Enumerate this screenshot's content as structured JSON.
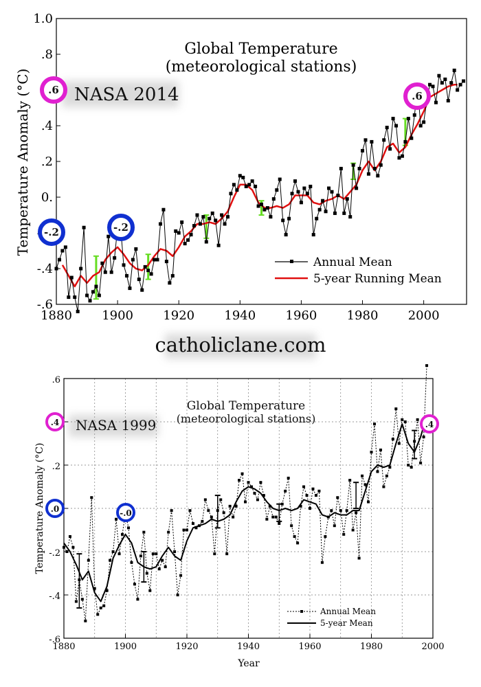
{
  "watermark": "catholiclane.com",
  "chart_data": [
    {
      "type": "line",
      "title": "Global Temperature",
      "subtitle": "(meteorological stations)",
      "stamp": "NASA 2014",
      "ylabel": "Temperature Anomaly (°C)",
      "xlabel": "",
      "xlim": [
        1880,
        2014
      ],
      "ylim": [
        -0.6,
        1.0
      ],
      "xticks": [
        1880,
        1900,
        1920,
        1940,
        1960,
        1980,
        2000
      ],
      "yticks": [
        {
          "v": -0.6,
          "label": "-.6"
        },
        {
          "v": -0.4,
          "label": "-.4"
        },
        {
          "v": -0.2,
          "label": "-.2"
        },
        {
          "v": 0.0,
          "label": "0."
        },
        {
          "v": 0.2,
          "label": ".2"
        },
        {
          "v": 0.4,
          "label": ".4"
        },
        {
          "v": 0.6,
          "label": ".6"
        },
        {
          "v": 0.8,
          "label": ".8"
        },
        {
          "v": 1.0,
          "label": "1.0"
        }
      ],
      "grid": false,
      "legend": {
        "position": "bottom-right",
        "annual": "Annual Mean",
        "running": "5-year Running Mean"
      },
      "colors": {
        "annual": "#000000",
        "running": "#e01010",
        "errorbar": "#66dd22"
      },
      "series": [
        {
          "name": "Annual Mean",
          "x": [
            1880,
            1881,
            1882,
            1883,
            1884,
            1885,
            1886,
            1887,
            1888,
            1889,
            1890,
            1891,
            1892,
            1893,
            1894,
            1895,
            1896,
            1897,
            1898,
            1899,
            1900,
            1901,
            1902,
            1903,
            1904,
            1905,
            1906,
            1907,
            1908,
            1909,
            1910,
            1911,
            1912,
            1913,
            1914,
            1915,
            1916,
            1917,
            1918,
            1919,
            1920,
            1921,
            1922,
            1923,
            1924,
            1925,
            1926,
            1927,
            1928,
            1929,
            1930,
            1931,
            1932,
            1933,
            1934,
            1935,
            1936,
            1937,
            1938,
            1939,
            1940,
            1941,
            1942,
            1943,
            1944,
            1945,
            1946,
            1947,
            1948,
            1949,
            1950,
            1951,
            1952,
            1953,
            1954,
            1955,
            1956,
            1957,
            1958,
            1959,
            1960,
            1961,
            1962,
            1963,
            1964,
            1965,
            1966,
            1967,
            1968,
            1969,
            1970,
            1971,
            1972,
            1973,
            1974,
            1975,
            1976,
            1977,
            1978,
            1979,
            1980,
            1981,
            1982,
            1983,
            1984,
            1985,
            1986,
            1987,
            1988,
            1989,
            1990,
            1991,
            1992,
            1993,
            1994,
            1995,
            1996,
            1997,
            1998,
            1999,
            2000,
            2001,
            2002,
            2003,
            2004,
            2005,
            2006,
            2007,
            2008,
            2009,
            2010,
            2011,
            2012,
            2013
          ],
          "y": [
            -0.4,
            -0.35,
            -0.3,
            -0.28,
            -0.56,
            -0.45,
            -0.56,
            -0.64,
            -0.4,
            -0.17,
            -0.55,
            -0.58,
            -0.53,
            -0.5,
            -0.55,
            -0.37,
            -0.42,
            -0.22,
            -0.42,
            -0.34,
            -0.17,
            -0.17,
            -0.38,
            -0.44,
            -0.51,
            -0.35,
            -0.29,
            -0.46,
            -0.52,
            -0.39,
            -0.41,
            -0.43,
            -0.35,
            -0.35,
            -0.15,
            -0.07,
            -0.36,
            -0.48,
            -0.44,
            -0.19,
            -0.2,
            -0.14,
            -0.26,
            -0.24,
            -0.21,
            -0.16,
            -0.1,
            -0.15,
            -0.11,
            -0.25,
            -0.12,
            -0.09,
            -0.13,
            -0.27,
            -0.1,
            -0.15,
            -0.11,
            0.02,
            0.07,
            0.04,
            0.12,
            0.11,
            0.06,
            0.07,
            0.09,
            0.06,
            -0.05,
            -0.04,
            -0.07,
            -0.06,
            -0.11,
            -0.01,
            0.04,
            0.1,
            -0.13,
            -0.21,
            -0.12,
            0.02,
            0.09,
            0.03,
            -0.03,
            0.05,
            0.02,
            0.06,
            -0.21,
            -0.12,
            -0.07,
            -0.02,
            -0.08,
            0.05,
            0.03,
            -0.09,
            0.01,
            0.16,
            -0.09,
            -0.01,
            -0.11,
            0.18,
            0.05,
            0.16,
            0.26,
            0.32,
            0.13,
            0.31,
            0.16,
            0.12,
            0.18,
            0.32,
            0.39,
            0.27,
            0.44,
            0.4,
            0.22,
            0.23,
            0.31,
            0.44,
            0.33,
            0.46,
            0.62,
            0.4,
            0.42,
            0.54,
            0.63,
            0.62,
            0.53,
            0.68,
            0.64,
            0.66,
            0.54,
            0.64,
            0.71,
            0.6,
            0.63,
            0.65
          ]
        },
        {
          "name": "5-year Running Mean",
          "x": [
            1882,
            1884,
            1886,
            1888,
            1890,
            1892,
            1894,
            1896,
            1898,
            1900,
            1902,
            1904,
            1906,
            1908,
            1910,
            1912,
            1914,
            1916,
            1918,
            1920,
            1922,
            1924,
            1926,
            1928,
            1930,
            1932,
            1934,
            1936,
            1938,
            1940,
            1942,
            1944,
            1946,
            1948,
            1950,
            1952,
            1954,
            1956,
            1958,
            1960,
            1962,
            1964,
            1966,
            1968,
            1970,
            1972,
            1974,
            1976,
            1978,
            1980,
            1982,
            1984,
            1986,
            1988,
            1990,
            1992,
            1994,
            1996,
            1998,
            2000,
            2002,
            2004,
            2006,
            2008,
            2010,
            2011
          ],
          "y": [
            -0.38,
            -0.44,
            -0.5,
            -0.44,
            -0.48,
            -0.44,
            -0.42,
            -0.35,
            -0.31,
            -0.28,
            -0.32,
            -0.37,
            -0.4,
            -0.41,
            -0.38,
            -0.33,
            -0.29,
            -0.3,
            -0.33,
            -0.28,
            -0.22,
            -0.19,
            -0.15,
            -0.15,
            -0.14,
            -0.15,
            -0.12,
            -0.08,
            0.0,
            0.07,
            0.07,
            0.04,
            -0.03,
            -0.06,
            -0.06,
            -0.05,
            -0.06,
            -0.04,
            0.01,
            0.01,
            0.01,
            -0.03,
            -0.04,
            -0.02,
            -0.01,
            0.01,
            -0.01,
            0.03,
            0.07,
            0.15,
            0.2,
            0.15,
            0.2,
            0.28,
            0.3,
            0.25,
            0.28,
            0.35,
            0.41,
            0.48,
            0.56,
            0.58,
            0.6,
            0.62,
            0.63,
            0.63
          ]
        }
      ],
      "errorbars": [
        {
          "x": 1893,
          "lo": -0.57,
          "hi": -0.33
        },
        {
          "x": 1910,
          "lo": -0.46,
          "hi": -0.32
        },
        {
          "x": 1929,
          "lo": -0.23,
          "hi": -0.1
        },
        {
          "x": 1947,
          "lo": -0.1,
          "hi": -0.02
        },
        {
          "x": 1977,
          "lo": 0.1,
          "hi": 0.19
        },
        {
          "x": 1994,
          "lo": 0.29,
          "hi": 0.44
        }
      ],
      "markers": [
        {
          "label": ".6",
          "color": "magenta",
          "x": 1879,
          "y": 0.6
        },
        {
          "label": "-.2",
          "color": "blue",
          "x": 1879,
          "y": -0.2
        },
        {
          "label": "-.2",
          "color": "blue",
          "x": 1900,
          "y": -0.18
        },
        {
          "label": ".6",
          "color": "magenta",
          "x": 1998,
          "y": 0.58
        }
      ]
    },
    {
      "type": "line",
      "title": "Global Temperature",
      "subtitle": "(meteorological stations)",
      "stamp": "NASA 1999",
      "ylabel": "Temperature Anomaly (°C)",
      "xlabel": "Year",
      "xlim": [
        1880,
        2000
      ],
      "ylim": [
        -0.6,
        0.6
      ],
      "xticks": [
        1880,
        1900,
        1920,
        1940,
        1960,
        1980,
        2000
      ],
      "yticks": [
        {
          "v": -0.6,
          "label": "-.6"
        },
        {
          "v": -0.4,
          "label": "-.4"
        },
        {
          "v": -0.2,
          "label": "-.2"
        },
        {
          "v": 0.0,
          "label": ".0"
        },
        {
          "v": 0.2,
          "label": ".2"
        },
        {
          "v": 0.4,
          "label": ".4"
        },
        {
          "v": 0.6,
          "label": ".6"
        }
      ],
      "grid": true,
      "legend": {
        "position": "bottom-right",
        "annual": "Annual Mean",
        "running": "5-year Mean"
      },
      "colors": {
        "annual": "#000000",
        "running": "#000000",
        "errorbar": "#000000"
      },
      "series": [
        {
          "name": "Annual Mean",
          "x": [
            1880,
            1881,
            1882,
            1883,
            1884,
            1885,
            1886,
            1887,
            1888,
            1889,
            1890,
            1891,
            1892,
            1893,
            1894,
            1895,
            1896,
            1897,
            1898,
            1899,
            1900,
            1901,
            1902,
            1903,
            1904,
            1905,
            1906,
            1907,
            1908,
            1909,
            1910,
            1911,
            1912,
            1913,
            1914,
            1915,
            1916,
            1917,
            1918,
            1919,
            1920,
            1921,
            1922,
            1923,
            1924,
            1925,
            1926,
            1927,
            1928,
            1929,
            1930,
            1931,
            1932,
            1933,
            1934,
            1935,
            1936,
            1937,
            1938,
            1939,
            1940,
            1941,
            1942,
            1943,
            1944,
            1945,
            1946,
            1947,
            1948,
            1949,
            1950,
            1951,
            1952,
            1953,
            1954,
            1955,
            1956,
            1957,
            1958,
            1959,
            1960,
            1961,
            1962,
            1963,
            1964,
            1965,
            1966,
            1967,
            1968,
            1969,
            1970,
            1971,
            1972,
            1973,
            1974,
            1975,
            1976,
            1977,
            1978,
            1979,
            1980,
            1981,
            1982,
            1983,
            1984,
            1985,
            1986,
            1987,
            1988,
            1989,
            1990,
            1991,
            1992,
            1993,
            1994,
            1995,
            1996,
            1997,
            1998
          ],
          "y": [
            -0.18,
            -0.2,
            -0.13,
            -0.18,
            -0.43,
            -0.33,
            -0.42,
            -0.52,
            -0.24,
            0.05,
            -0.37,
            -0.49,
            -0.46,
            -0.45,
            -0.38,
            -0.24,
            -0.2,
            -0.05,
            -0.21,
            -0.12,
            -0.02,
            -0.09,
            -0.25,
            -0.35,
            -0.42,
            -0.22,
            -0.11,
            -0.3,
            -0.38,
            -0.21,
            -0.21,
            -0.28,
            -0.24,
            -0.27,
            -0.11,
            -0.01,
            -0.2,
            -0.4,
            -0.31,
            -0.1,
            -0.1,
            -0.01,
            -0.07,
            -0.09,
            -0.08,
            -0.06,
            0.04,
            -0.01,
            -0.04,
            -0.21,
            -0.01,
            0.04,
            -0.02,
            -0.21,
            0.01,
            -0.04,
            0.01,
            0.13,
            0.16,
            0.03,
            0.12,
            0.1,
            0.07,
            0.04,
            0.12,
            0.06,
            -0.05,
            0.01,
            -0.04,
            -0.04,
            -0.07,
            0.02,
            0.08,
            0.14,
            -0.08,
            -0.13,
            -0.16,
            0.01,
            0.1,
            0.06,
            0.0,
            0.09,
            0.06,
            0.08,
            -0.25,
            -0.13,
            -0.04,
            -0.01,
            -0.08,
            0.05,
            -0.01,
            -0.12,
            -0.01,
            0.13,
            -0.1,
            -0.02,
            -0.23,
            0.15,
            0.11,
            0.03,
            0.26,
            0.39,
            0.17,
            0.27,
            0.1,
            0.15,
            0.19,
            0.32,
            0.46,
            0.3,
            0.41,
            0.4,
            0.2,
            0.19,
            0.31,
            0.41,
            0.21,
            0.33,
            0.66
          ]
        },
        {
          "name": "5-year Mean",
          "x": [
            1880,
            1882,
            1884,
            1886,
            1888,
            1890,
            1892,
            1894,
            1896,
            1898,
            1900,
            1902,
            1904,
            1906,
            1908,
            1910,
            1912,
            1914,
            1916,
            1918,
            1920,
            1922,
            1924,
            1926,
            1928,
            1930,
            1932,
            1934,
            1936,
            1938,
            1940,
            1942,
            1944,
            1946,
            1948,
            1950,
            1952,
            1954,
            1956,
            1958,
            1960,
            1962,
            1964,
            1966,
            1968,
            1970,
            1972,
            1974,
            1976,
            1978,
            1980,
            1982,
            1984,
            1986,
            1988,
            1990,
            1992,
            1994,
            1996,
            1997
          ],
          "y": [
            -0.16,
            -0.2,
            -0.26,
            -0.33,
            -0.29,
            -0.39,
            -0.43,
            -0.36,
            -0.23,
            -0.17,
            -0.12,
            -0.16,
            -0.25,
            -0.27,
            -0.28,
            -0.27,
            -0.22,
            -0.18,
            -0.22,
            -0.24,
            -0.15,
            -0.09,
            -0.08,
            -0.07,
            -0.05,
            -0.06,
            -0.05,
            -0.03,
            0.03,
            0.08,
            0.1,
            0.09,
            0.07,
            0.03,
            0.0,
            -0.01,
            0.0,
            -0.01,
            0.0,
            0.04,
            0.03,
            0.02,
            -0.03,
            -0.04,
            -0.02,
            -0.03,
            -0.03,
            -0.01,
            -0.01,
            0.08,
            0.17,
            0.2,
            0.19,
            0.2,
            0.3,
            0.39,
            0.3,
            0.26,
            0.33,
            0.38
          ]
        }
      ],
      "errorbars": [
        {
          "x": 1885,
          "lo": -0.46,
          "hi": -0.21
        },
        {
          "x": 1906,
          "lo": -0.34,
          "hi": -0.2
        },
        {
          "x": 1930,
          "lo": -0.09,
          "hi": 0.06
        },
        {
          "x": 1950,
          "lo": -0.06,
          "hi": 0.02
        },
        {
          "x": 1975,
          "lo": 0.0,
          "hi": 0.12
        },
        {
          "x": 1994,
          "lo": 0.23,
          "hi": 0.36
        }
      ],
      "markers": [
        {
          "label": ".4",
          "color": "magenta",
          "x": 1879,
          "y": 0.4
        },
        {
          "label": ".0",
          "color": "blue",
          "x": 1879,
          "y": 0.0
        },
        {
          "label": "-.0",
          "color": "blue",
          "x": 1900,
          "y": -0.02
        },
        {
          "label": ".4",
          "color": "magenta",
          "x": 1998,
          "y": 0.39
        }
      ]
    }
  ]
}
